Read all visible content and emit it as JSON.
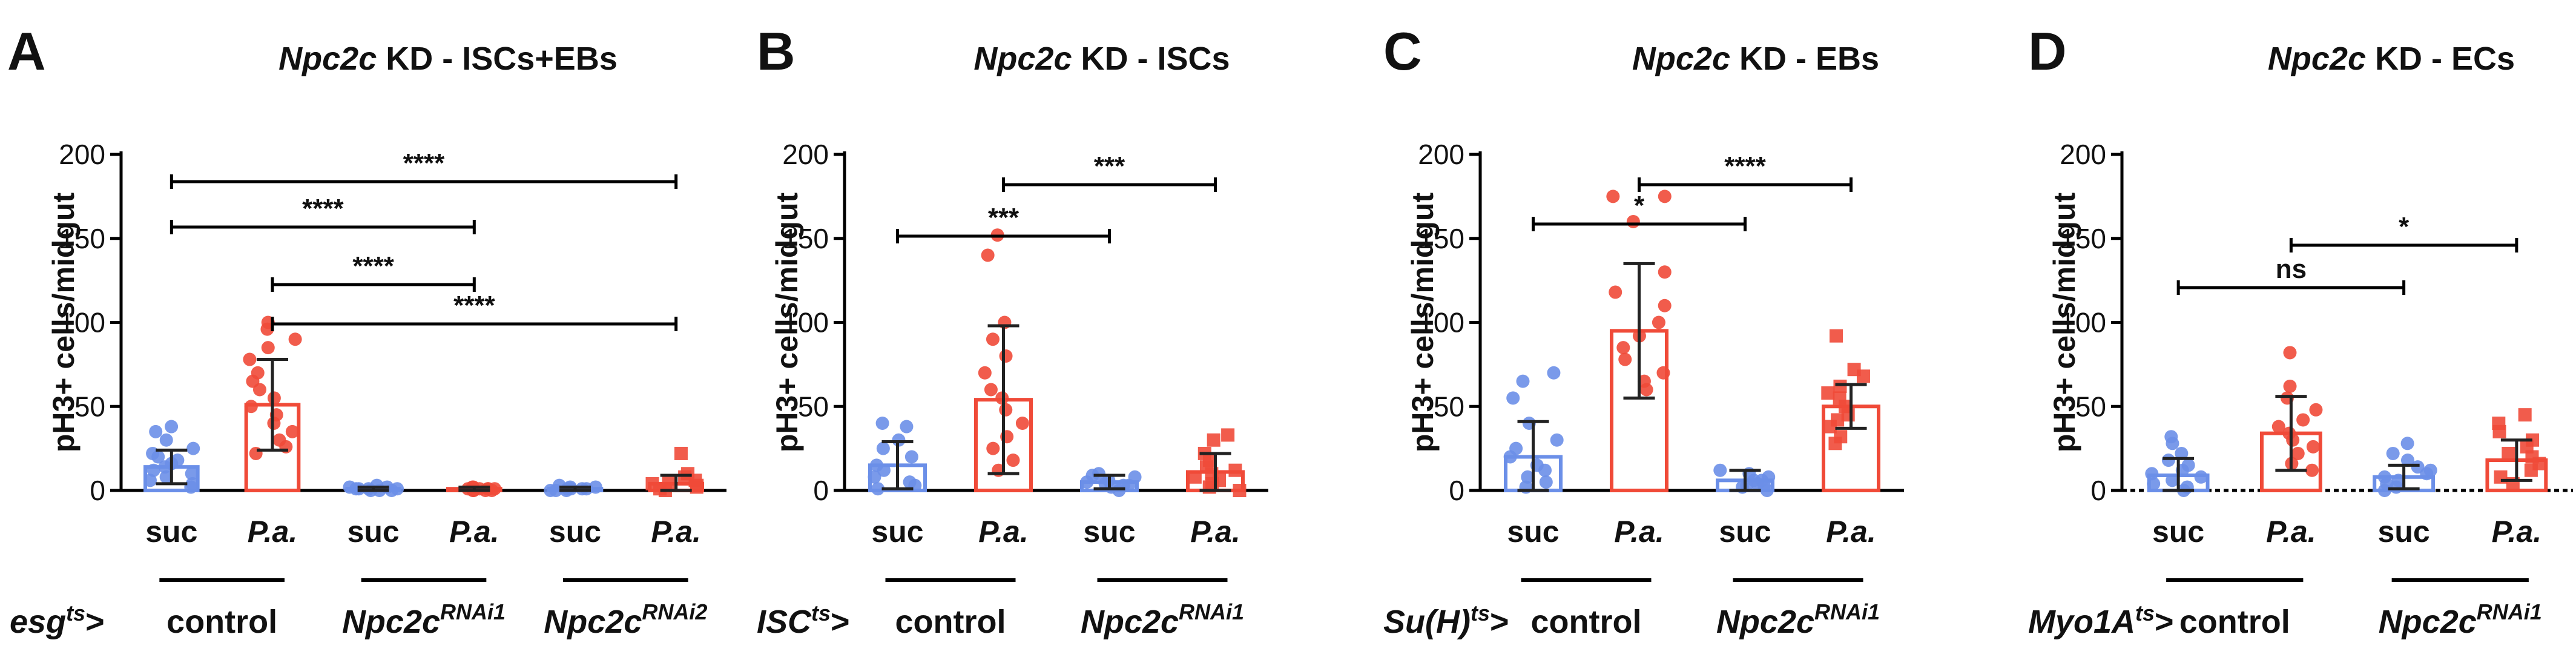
{
  "colors": {
    "suc": "#6b8fe8",
    "pa": "#f04a38",
    "axis": "#000000"
  },
  "chart_data": [
    {
      "type": "bar",
      "panel": "A",
      "title_gene": "Npc2c",
      "title_rest": " KD - ISCs+EBs",
      "ylabel": "pH3+ cells/midgut",
      "ylim": [
        0,
        200
      ],
      "yticks": [
        0,
        50,
        100,
        150,
        200
      ],
      "categories": [
        "suc",
        "P.a.",
        "suc",
        "P.a.",
        "suc",
        "P.a."
      ],
      "values": [
        14,
        51,
        1,
        1,
        1,
        4
      ],
      "sd": [
        10,
        27,
        1,
        1,
        1,
        5
      ],
      "points": [
        [
          2,
          4,
          6,
          8,
          10,
          12,
          14,
          16,
          18,
          20,
          22,
          25,
          30,
          35,
          38
        ],
        [
          22,
          26,
          30,
          35,
          40,
          45,
          50,
          55,
          60,
          65,
          70,
          78,
          85,
          90,
          96,
          100
        ],
        [
          0,
          0,
          1,
          1,
          1,
          2,
          2,
          3,
          0,
          1
        ],
        [
          0,
          0,
          1,
          1,
          1,
          2,
          2,
          1,
          0,
          0,
          1
        ],
        [
          0,
          0,
          1,
          1,
          2,
          2,
          3,
          1,
          0,
          1
        ],
        [
          0,
          1,
          2,
          3,
          4,
          5,
          6,
          8,
          10,
          22
        ]
      ],
      "marker": [
        "o",
        "o",
        "o",
        "o",
        "o",
        "s"
      ],
      "fills": [
        "suc",
        "pa",
        "suc",
        "pa",
        "suc",
        "pa"
      ],
      "comparisons": [
        [
          0,
          5,
          "****"
        ],
        [
          0,
          3,
          "****"
        ],
        [
          1,
          3,
          "****"
        ],
        [
          1,
          5,
          "****"
        ]
      ],
      "genotype_prefix": "esg",
      "genotype_prefix_sup": "ts",
      "groups": [
        {
          "label": "control",
          "sup": "",
          "span": [
            0,
            1
          ]
        },
        {
          "label": "Npc2c",
          "sup": "RNAi1",
          "span": [
            2,
            3
          ]
        },
        {
          "label": "Npc2c",
          "sup": "RNAi2",
          "span": [
            4,
            5
          ]
        }
      ]
    },
    {
      "type": "bar",
      "panel": "B",
      "title_gene": "Npc2c",
      "title_rest": "  KD - ISCs",
      "ylabel": "pH3+ cells/midgut",
      "ylim": [
        0,
        200
      ],
      "yticks": [
        0,
        50,
        100,
        150,
        200
      ],
      "categories": [
        "suc",
        "P.a.",
        "suc",
        "P.a."
      ],
      "values": [
        15,
        54,
        5,
        11
      ],
      "sd": [
        14,
        44,
        4,
        11
      ],
      "points": [
        [
          1,
          3,
          5,
          8,
          12,
          15,
          20,
          25,
          30,
          38,
          40
        ],
        [
          12,
          18,
          25,
          32,
          40,
          48,
          55,
          60,
          70,
          80,
          90,
          100,
          140,
          152
        ],
        [
          0,
          2,
          3,
          5,
          6,
          8,
          9,
          10,
          3,
          4
        ],
        [
          0,
          2,
          4,
          6,
          8,
          10,
          12,
          14,
          18,
          22,
          30,
          33
        ]
      ],
      "marker": [
        "o",
        "o",
        "o",
        "s"
      ],
      "fills": [
        "suc",
        "pa",
        "suc",
        "pa"
      ],
      "comparisons": [
        [
          0,
          2,
          "***"
        ],
        [
          1,
          3,
          "***"
        ]
      ],
      "genotype_prefix": "ISC",
      "genotype_prefix_sup": "ts",
      "groups": [
        {
          "label": "control",
          "sup": "",
          "span": [
            0,
            1
          ]
        },
        {
          "label": "Npc2c",
          "sup": "RNAi1",
          "span": [
            2,
            3
          ]
        }
      ]
    },
    {
      "type": "bar",
      "panel": "C",
      "title_gene": "Npc2c",
      "title_rest": " KD - EBs",
      "ylabel": "pH3+ cells/midgut",
      "ylim": [
        0,
        200
      ],
      "yticks": [
        0,
        50,
        100,
        150,
        200
      ],
      "categories": [
        "suc",
        "P.a.",
        "suc",
        "P.a."
      ],
      "values": [
        20,
        95,
        6,
        50
      ],
      "sd": [
        21,
        40,
        6,
        13
      ],
      "points": [
        [
          2,
          5,
          8,
          12,
          15,
          20,
          25,
          30,
          40,
          55,
          65,
          70
        ],
        [
          60,
          65,
          70,
          78,
          85,
          92,
          100,
          110,
          118,
          130,
          160,
          175,
          175
        ],
        [
          0,
          2,
          3,
          4,
          6,
          8,
          10,
          12,
          6,
          3
        ],
        [
          28,
          32,
          38,
          42,
          45,
          50,
          55,
          58,
          62,
          68,
          72,
          92
        ]
      ],
      "marker": [
        "o",
        "o",
        "o",
        "s"
      ],
      "fills": [
        "suc",
        "pa",
        "suc",
        "pa"
      ],
      "comparisons": [
        [
          0,
          2,
          "*"
        ],
        [
          1,
          3,
          "****"
        ]
      ],
      "genotype_prefix": "Su(H)",
      "genotype_prefix_sup": "ts",
      "groups": [
        {
          "label": "control",
          "sup": "",
          "span": [
            0,
            1
          ]
        },
        {
          "label": "Npc2c",
          "sup": "RNAi1",
          "span": [
            2,
            3
          ]
        }
      ]
    },
    {
      "type": "bar",
      "panel": "D",
      "title_gene": "Npc2c",
      "title_rest": "  KD - ECs",
      "ylabel": "pH3+ cells/midgut",
      "ylim": [
        0,
        200
      ],
      "yticks": [
        0,
        50,
        100,
        150,
        200
      ],
      "categories": [
        "suc",
        "P.a.",
        "suc",
        "P.a."
      ],
      "values": [
        9,
        34,
        8,
        18
      ],
      "sd": [
        10,
        22,
        7,
        12
      ],
      "points": [
        [
          0,
          2,
          4,
          6,
          8,
          10,
          12,
          15,
          18,
          22,
          28,
          32
        ],
        [
          12,
          16,
          22,
          26,
          30,
          34,
          38,
          42,
          48,
          55,
          62,
          82
        ],
        [
          0,
          2,
          4,
          6,
          8,
          10,
          12,
          14,
          18,
          22,
          28
        ],
        [
          4,
          8,
          12,
          16,
          20,
          22,
          26,
          30,
          35,
          40,
          45
        ]
      ],
      "marker": [
        "o",
        "o",
        "o",
        "s"
      ],
      "fills": [
        "suc",
        "pa",
        "suc",
        "pa"
      ],
      "comparisons": [
        [
          0,
          2,
          "ns"
        ],
        [
          1,
          3,
          "*"
        ]
      ],
      "genotype_prefix": "Myo1A",
      "genotype_prefix_sup": "ts",
      "groups": [
        {
          "label": "control",
          "sup": "",
          "span": [
            0,
            1
          ]
        },
        {
          "label": "Npc2c",
          "sup": "RNAi1",
          "span": [
            2,
            3
          ]
        }
      ]
    }
  ]
}
